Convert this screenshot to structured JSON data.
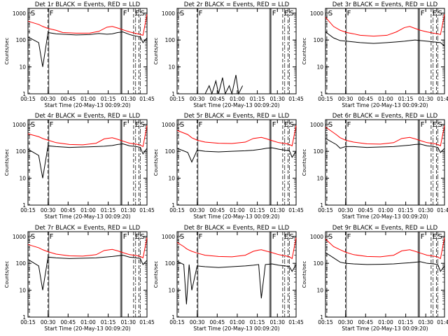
{
  "colors": {
    "events": "#000000",
    "lld": "#ff0000",
    "axes": "#000000",
    "background": "#ffffff"
  },
  "common": {
    "ylabel": "Counts/sec",
    "xlabel": "Start Time (20-May-13 00:09:20)",
    "xticks": [
      "00:15",
      "00:30",
      "00:45",
      "01:00",
      "01:15",
      "01:30",
      "01:45"
    ],
    "yticks": [
      "1",
      "10",
      "100",
      "1000"
    ],
    "scale": "log"
  },
  "chart_data": [
    {
      "type": "line",
      "title": "Det 1r BLACK = Events, RED = LLD",
      "x_minutes": [
        9,
        17,
        20,
        24,
        30,
        35,
        45,
        55,
        62,
        68,
        72,
        76,
        80,
        85,
        87,
        90,
        93,
        95,
        98
      ],
      "series": [
        {
          "name": "Events",
          "color": "#000000",
          "values": [
            130,
            80,
            10,
            190,
            170,
            165,
            155,
            160,
            175,
            165,
            170,
            190,
            200,
            160,
            150,
            140,
            130,
            80,
            120
          ]
        },
        {
          "name": "LLD",
          "color": "#ff0000",
          "values": [
            500,
            380,
            320,
            270,
            230,
            190,
            180,
            180,
            210,
            300,
            320,
            280,
            240,
            200,
            190,
            175,
            160,
            150,
            900
          ]
        }
      ],
      "markers": [
        {
          "label": "S",
          "x": 10
        },
        {
          "label": "F",
          "x": 24
        },
        {
          "label": "F",
          "x": 79
        },
        {
          "label": "E",
          "x": 88
        },
        {
          "label": "S",
          "x": 92
        }
      ]
    },
    {
      "type": "line",
      "title": "Det 2r BLACK = Events, RED = LLD",
      "x_minutes": [
        30,
        33,
        35,
        38,
        40,
        43,
        45,
        48,
        50,
        53,
        55,
        58
      ],
      "series": [
        {
          "name": "Events",
          "color": "#000000",
          "values": [
            1,
            2,
            1,
            3,
            1,
            4,
            1,
            2,
            1,
            5,
            1,
            2
          ]
        }
      ],
      "markers": [
        {
          "label": "S",
          "x": 10
        },
        {
          "label": "F",
          "x": 24
        },
        {
          "label": "F",
          "x": 79
        },
        {
          "label": "E",
          "x": 88
        },
        {
          "label": "S",
          "x": 92
        }
      ]
    },
    {
      "type": "line",
      "title": "Det 3r BLACK = Events, RED = LLD",
      "x_minutes": [
        9,
        15,
        20,
        25,
        30,
        35,
        45,
        55,
        62,
        68,
        72,
        76,
        80,
        85,
        90,
        95,
        98
      ],
      "series": [
        {
          "name": "Events",
          "color": "#000000",
          "values": [
            200,
            120,
            95,
            90,
            85,
            80,
            75,
            80,
            85,
            90,
            95,
            100,
            95,
            90,
            85,
            80,
            60
          ]
        },
        {
          "name": "LLD",
          "color": "#ff0000",
          "values": [
            700,
            320,
            230,
            190,
            170,
            150,
            140,
            150,
            200,
            290,
            320,
            270,
            230,
            200,
            180,
            160,
            900
          ]
        }
      ],
      "markers": [
        {
          "label": "S",
          "x": 10
        },
        {
          "label": "F",
          "x": 24
        },
        {
          "label": "F",
          "x": 79
        },
        {
          "label": "E",
          "x": 88
        },
        {
          "label": "S",
          "x": 92
        }
      ]
    },
    {
      "type": "line",
      "title": "Det 4r BLACK = Events, RED = LLD",
      "x_minutes": [
        9,
        17,
        20,
        24,
        30,
        40,
        50,
        60,
        66,
        72,
        76,
        80,
        85,
        90,
        93,
        95,
        98
      ],
      "series": [
        {
          "name": "Events",
          "color": "#000000",
          "values": [
            120,
            70,
            10,
            160,
            150,
            140,
            145,
            150,
            155,
            165,
            180,
            190,
            160,
            150,
            140,
            80,
            130
          ]
        },
        {
          "name": "LLD",
          "color": "#ff0000",
          "values": [
            450,
            350,
            300,
            260,
            210,
            180,
            175,
            200,
            290,
            320,
            280,
            240,
            200,
            185,
            170,
            150,
            900
          ]
        }
      ],
      "markers": [
        {
          "label": "S",
          "x": 10
        },
        {
          "label": "F",
          "x": 24
        },
        {
          "label": "F",
          "x": 79
        },
        {
          "label": "E",
          "x": 88
        },
        {
          "label": "S",
          "x": 92
        }
      ]
    },
    {
      "type": "line",
      "title": "Det 5r BLACK = Events, RED = LLD",
      "x_minutes": [
        9,
        17,
        20,
        24,
        30,
        40,
        50,
        60,
        66,
        72,
        76,
        80,
        85,
        90,
        93,
        95,
        98
      ],
      "series": [
        {
          "name": "Events",
          "color": "#000000",
          "values": [
            130,
            90,
            40,
            110,
            100,
            95,
            100,
            105,
            110,
            120,
            130,
            135,
            120,
            110,
            105,
            60,
            100
          ]
        },
        {
          "name": "LLD",
          "color": "#ff0000",
          "values": [
            600,
            420,
            320,
            260,
            220,
            200,
            195,
            220,
            300,
            330,
            290,
            250,
            210,
            195,
            180,
            160,
            900
          ]
        }
      ],
      "markers": [
        {
          "label": "S",
          "x": 10
        },
        {
          "label": "F",
          "x": 24
        },
        {
          "label": "F",
          "x": 79
        },
        {
          "label": "E",
          "x": 88
        },
        {
          "label": "S",
          "x": 92
        }
      ]
    },
    {
      "type": "line",
      "title": "Det 6r BLACK = Events, RED = LLD",
      "x_minutes": [
        9,
        17,
        20,
        24,
        30,
        40,
        50,
        60,
        66,
        72,
        76,
        80,
        85,
        90,
        93,
        95,
        98
      ],
      "series": [
        {
          "name": "Events",
          "color": "#000000",
          "values": [
            300,
            180,
            130,
            150,
            150,
            140,
            145,
            150,
            160,
            170,
            180,
            185,
            160,
            150,
            140,
            90,
            130
          ]
        },
        {
          "name": "LLD",
          "color": "#ff0000",
          "values": [
            800,
            420,
            320,
            260,
            220,
            190,
            185,
            210,
            300,
            330,
            290,
            250,
            210,
            195,
            180,
            160,
            900
          ]
        }
      ],
      "markers": [
        {
          "label": "S",
          "x": 10
        },
        {
          "label": "F",
          "x": 24
        },
        {
          "label": "F",
          "x": 79
        },
        {
          "label": "E",
          "x": 88
        },
        {
          "label": "S",
          "x": 92
        }
      ]
    },
    {
      "type": "line",
      "title": "Det 7r BLACK = Events, RED = LLD",
      "x_minutes": [
        9,
        17,
        20,
        24,
        30,
        40,
        50,
        60,
        66,
        72,
        76,
        80,
        85,
        90,
        93,
        95,
        98
      ],
      "series": [
        {
          "name": "Events",
          "color": "#000000",
          "values": [
            140,
            80,
            10,
            170,
            160,
            150,
            155,
            160,
            170,
            180,
            190,
            200,
            170,
            160,
            150,
            90,
            130
          ]
        },
        {
          "name": "LLD",
          "color": "#ff0000",
          "values": [
            500,
            380,
            320,
            270,
            220,
            190,
            185,
            210,
            300,
            330,
            290,
            250,
            210,
            195,
            180,
            160,
            900
          ]
        }
      ],
      "markers": [
        {
          "label": "S",
          "x": 10
        },
        {
          "label": "F",
          "x": 24
        },
        {
          "label": "F",
          "x": 79
        },
        {
          "label": "E",
          "x": 88
        },
        {
          "label": "S",
          "x": 92
        }
      ]
    },
    {
      "type": "line",
      "title": "Det 8r BLACK = Events, RED = LLD",
      "x_minutes": [
        9,
        14,
        16,
        18,
        20,
        24,
        30,
        40,
        50,
        60,
        66,
        70,
        72,
        75,
        80,
        85,
        90,
        93,
        95,
        98
      ],
      "series": [
        {
          "name": "Events",
          "color": "#000000",
          "values": [
            120,
            90,
            3,
            90,
            10,
            80,
            75,
            70,
            75,
            80,
            85,
            90,
            5,
            90,
            95,
            85,
            80,
            75,
            50,
            90
          ]
        },
        {
          "name": "LLD",
          "color": "#ff0000",
          "values": [
            600,
            420,
            350,
            310,
            280,
            240,
            200,
            180,
            175,
            200,
            280,
            310,
            320,
            290,
            250,
            210,
            190,
            175,
            150,
            900
          ]
        }
      ],
      "markers": [
        {
          "label": "S",
          "x": 10
        },
        {
          "label": "F",
          "x": 24
        },
        {
          "label": "F",
          "x": 79
        },
        {
          "label": "E",
          "x": 88
        },
        {
          "label": "S",
          "x": 92
        }
      ]
    },
    {
      "type": "line",
      "title": "Det 9r BLACK = Events, RED = LLD",
      "x_minutes": [
        9,
        15,
        20,
        24,
        30,
        40,
        50,
        60,
        66,
        72,
        76,
        80,
        85,
        90,
        93,
        95,
        98
      ],
      "series": [
        {
          "name": "Events",
          "color": "#000000",
          "values": [
            250,
            160,
            110,
            100,
            95,
            90,
            92,
            95,
            100,
            105,
            110,
            115,
            100,
            95,
            90,
            50,
            80
          ]
        },
        {
          "name": "LLD",
          "color": "#ff0000",
          "values": [
            800,
            420,
            320,
            260,
            210,
            180,
            175,
            200,
            290,
            320,
            280,
            240,
            200,
            185,
            170,
            150,
            900
          ]
        }
      ],
      "markers": [
        {
          "label": "S",
          "x": 10
        },
        {
          "label": "F",
          "x": 24
        },
        {
          "label": "F",
          "x": 79
        },
        {
          "label": "E",
          "x": 88
        },
        {
          "label": "S",
          "x": 92
        }
      ]
    }
  ]
}
